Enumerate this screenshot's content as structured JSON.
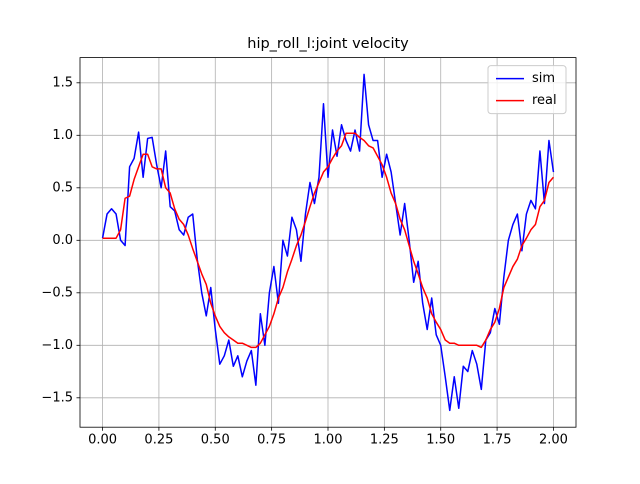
{
  "chart_data": {
    "type": "line",
    "title": "hip_roll_l:joint velocity",
    "x": [
      0,
      0.02,
      0.04,
      0.06,
      0.08,
      0.1,
      0.12,
      0.14,
      0.16,
      0.18,
      0.2,
      0.22,
      0.24,
      0.26,
      0.28,
      0.3,
      0.32,
      0.34,
      0.36,
      0.38,
      0.4,
      0.42,
      0.44,
      0.46,
      0.48,
      0.5,
      0.52,
      0.54,
      0.56,
      0.58,
      0.6,
      0.62,
      0.64,
      0.66,
      0.68,
      0.7,
      0.72,
      0.74,
      0.76,
      0.78,
      0.8,
      0.82,
      0.84,
      0.86,
      0.88,
      0.9,
      0.92,
      0.94,
      0.96,
      0.98,
      1,
      1.02,
      1.04,
      1.06,
      1.08,
      1.1,
      1.12,
      1.14,
      1.16,
      1.18,
      1.2,
      1.22,
      1.24,
      1.26,
      1.28,
      1.3,
      1.32,
      1.34,
      1.36,
      1.38,
      1.4,
      1.42,
      1.44,
      1.46,
      1.48,
      1.5,
      1.52,
      1.54,
      1.56,
      1.58,
      1.6,
      1.62,
      1.64,
      1.66,
      1.68,
      1.7,
      1.72,
      1.74,
      1.76,
      1.78,
      1.8,
      1.82,
      1.84,
      1.86,
      1.88,
      1.9,
      1.92,
      1.94,
      1.96,
      1.98,
      2
    ],
    "series": [
      {
        "name": "sim",
        "color": "#0000ff",
        "values": [
          0.02,
          0.25,
          0.3,
          0.25,
          0.0,
          -0.05,
          0.7,
          0.78,
          1.03,
          0.6,
          0.97,
          0.98,
          0.72,
          0.5,
          0.85,
          0.32,
          0.28,
          0.1,
          0.05,
          0.22,
          0.25,
          -0.18,
          -0.5,
          -0.72,
          -0.45,
          -0.85,
          -1.18,
          -1.1,
          -0.95,
          -1.2,
          -1.1,
          -1.3,
          -1.15,
          -1.05,
          -1.38,
          -0.7,
          -1.0,
          -0.5,
          -0.25,
          -0.6,
          0.0,
          -0.15,
          0.22,
          0.1,
          -0.2,
          0.25,
          0.55,
          0.35,
          0.6,
          1.3,
          0.6,
          1.05,
          0.8,
          1.1,
          0.95,
          0.85,
          1.05,
          0.85,
          1.58,
          1.1,
          0.95,
          0.95,
          0.6,
          0.82,
          0.65,
          0.35,
          0.05,
          0.35,
          0.0,
          -0.4,
          -0.2,
          -0.6,
          -0.85,
          -0.55,
          -0.9,
          -1.0,
          -1.3,
          -1.62,
          -1.3,
          -1.6,
          -1.2,
          -1.25,
          -1.05,
          -1.18,
          -1.42,
          -0.95,
          -0.88,
          -0.65,
          -0.8,
          -0.35,
          0.0,
          0.15,
          0.25,
          -0.1,
          0.25,
          0.38,
          0.3,
          0.85,
          0.35,
          0.95,
          0.65
        ]
      },
      {
        "name": "real",
        "color": "#ff0000",
        "values": [
          0.02,
          0.02,
          0.02,
          0.02,
          0.1,
          0.4,
          0.42,
          0.58,
          0.7,
          0.82,
          0.82,
          0.7,
          0.68,
          0.68,
          0.5,
          0.45,
          0.3,
          0.2,
          0.15,
          0.05,
          -0.08,
          -0.2,
          -0.32,
          -0.42,
          -0.6,
          -0.72,
          -0.82,
          -0.88,
          -0.92,
          -0.95,
          -0.98,
          -0.98,
          -1.0,
          -1.02,
          -1.02,
          -0.98,
          -0.9,
          -0.82,
          -0.7,
          -0.55,
          -0.45,
          -0.3,
          -0.18,
          -0.05,
          0.05,
          0.18,
          0.32,
          0.45,
          0.55,
          0.65,
          0.7,
          0.78,
          0.85,
          0.9,
          1.02,
          1.02,
          1.02,
          0.98,
          0.95,
          0.9,
          0.88,
          0.8,
          0.72,
          0.6,
          0.45,
          0.35,
          0.2,
          0.1,
          -0.05,
          -0.2,
          -0.32,
          -0.45,
          -0.55,
          -0.7,
          -0.78,
          -0.85,
          -0.95,
          -0.98,
          -0.98,
          -1.0,
          -1.0,
          -1.0,
          -1.0,
          -1.0,
          -1.02,
          -0.95,
          -0.85,
          -0.78,
          -0.65,
          -0.45,
          -0.35,
          -0.25,
          -0.18,
          -0.05,
          0.02,
          0.1,
          0.15,
          0.32,
          0.38,
          0.55,
          0.6
        ]
      }
    ],
    "xlim": [
      -0.1,
      2.1
    ],
    "xticks": [
      {
        "value": 0,
        "label": "0.00"
      },
      {
        "value": 0.25,
        "label": "0.25"
      },
      {
        "value": 0.5,
        "label": "0.50"
      },
      {
        "value": 0.75,
        "label": "0.75"
      },
      {
        "value": 1,
        "label": "1.00"
      },
      {
        "value": 1.25,
        "label": "1.25"
      },
      {
        "value": 1.5,
        "label": "1.50"
      },
      {
        "value": 1.75,
        "label": "1.75"
      },
      {
        "value": 2,
        "label": "2.00"
      }
    ],
    "ylim": [
      -1.78,
      1.74
    ],
    "yticks": [
      {
        "value": -1.5,
        "label": "−1.5"
      },
      {
        "value": -1,
        "label": "−1.0"
      },
      {
        "value": -0.5,
        "label": "−0.5"
      },
      {
        "value": 0,
        "label": "0.0"
      },
      0.5,
      {
        "value": 1,
        "label": "1.0"
      },
      1.5
    ],
    "grid": true,
    "legend": "upper right"
  }
}
